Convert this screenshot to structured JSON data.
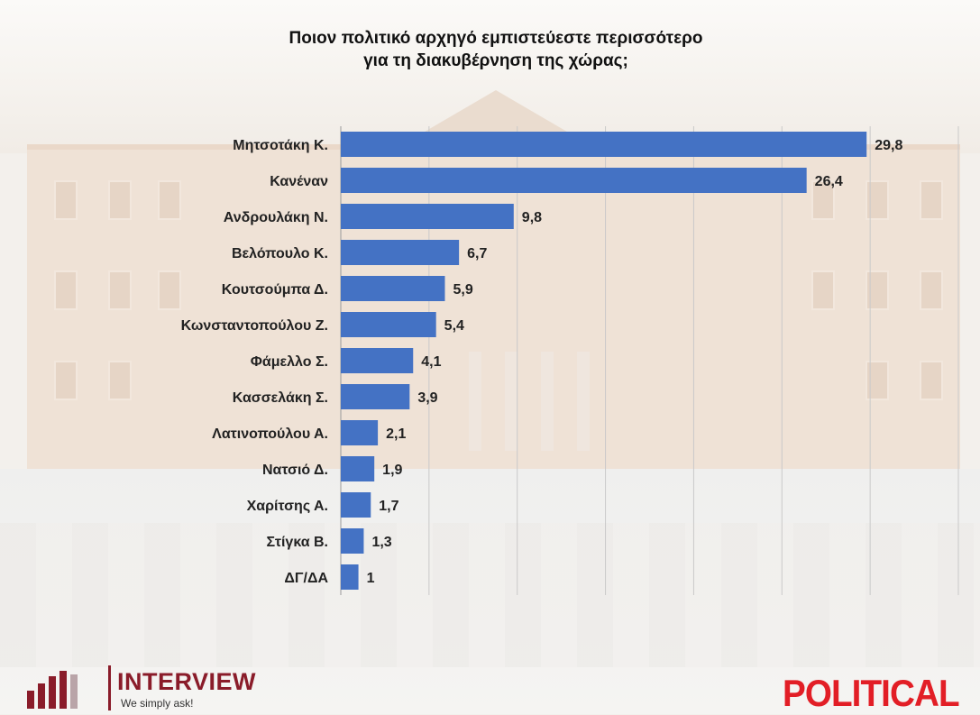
{
  "title_line1": "Ποιον πολιτικό αρχηγό εμπιστεύεστε περισσότερο",
  "title_line2": "για τη διακυβέρνηση της χώρας;",
  "chart_data": {
    "type": "bar",
    "orientation": "horizontal",
    "categories": [
      "Μητσοτάκη Κ.",
      "Κανέναν",
      "Ανδρουλάκη Ν.",
      "Βελόπουλο Κ.",
      "Κουτσούμπα Δ.",
      "Κωνσταντοπούλου Ζ.",
      "Φάμελλο Σ.",
      "Κασσελάκη Σ.",
      "Λατινοπούλου Α.",
      "Νατσιό Δ.",
      "Χαρίτσης Α.",
      "Στίγκα Β.",
      "ΔΓ/ΔΑ"
    ],
    "values": [
      29.8,
      26.4,
      9.8,
      6.7,
      5.9,
      5.4,
      4.1,
      3.9,
      2.1,
      1.9,
      1.7,
      1.3,
      1
    ],
    "value_labels": [
      "29,8",
      "26,4",
      "9,8",
      "6,7",
      "5,9",
      "5,4",
      "4,1",
      "3,9",
      "2,1",
      "1,9",
      "1,7",
      "1,3",
      "1"
    ],
    "xlim": [
      0,
      35
    ],
    "grid": true,
    "bar_color": "#4472c4"
  },
  "branding": {
    "interview_name": "INTERVIEW",
    "interview_tagline": "We simply ask!",
    "political": "POLITICAL",
    "interview_color": "#8a1c2a",
    "political_color": "#e21e26"
  }
}
